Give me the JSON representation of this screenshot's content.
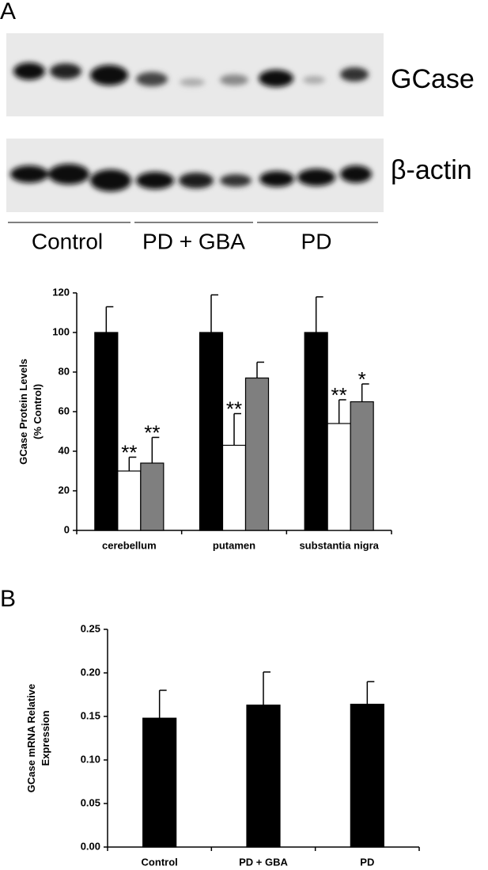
{
  "figure": {
    "panels": [
      "A",
      "B"
    ],
    "blot": {
      "rows": [
        "GCase",
        "β-actin"
      ],
      "groups": [
        "Control",
        "PD + GBA",
        "PD"
      ]
    }
  },
  "chart_data": [
    {
      "type": "bar",
      "ylabel": [
        "GCase Protein Levels",
        "(% Control)"
      ],
      "categories": [
        "cerebellum",
        "putamen",
        "substantia nigra"
      ],
      "series": [
        {
          "color": "#000000",
          "values": [
            100,
            100,
            100
          ],
          "errors": [
            13,
            19,
            18
          ]
        },
        {
          "color": "#ffffff",
          "values": [
            30,
            43,
            54
          ],
          "errors": [
            7,
            16,
            12
          ],
          "significance": [
            "**",
            "**",
            "**"
          ]
        },
        {
          "color": "#7f7f7f",
          "values": [
            34,
            77,
            65
          ],
          "errors": [
            13,
            8,
            9
          ],
          "significance": [
            "**",
            null,
            "*"
          ]
        }
      ],
      "ylim": [
        0,
        120
      ],
      "yticks": [
        0,
        20,
        40,
        60,
        80,
        100,
        120
      ]
    },
    {
      "type": "bar",
      "ylabel": [
        "GCase mRNA Relative",
        "Expression"
      ],
      "categories": [
        "Control",
        "PD + GBA",
        "PD"
      ],
      "values": [
        0.148,
        0.163,
        0.164
      ],
      "errors": [
        0.032,
        0.038,
        0.026
      ],
      "color": "#000000",
      "ylim": [
        0,
        0.25
      ],
      "yticks": [
        {
          "value": 0,
          "label": "0.00"
        },
        {
          "value": 0.05,
          "label": "0.05"
        },
        {
          "value": 0.1,
          "label": "0.10"
        },
        {
          "value": 0.15,
          "label": "0.15"
        },
        {
          "value": 0.2,
          "label": "0.20"
        },
        {
          "value": 0.25,
          "label": "0.25"
        }
      ]
    }
  ]
}
